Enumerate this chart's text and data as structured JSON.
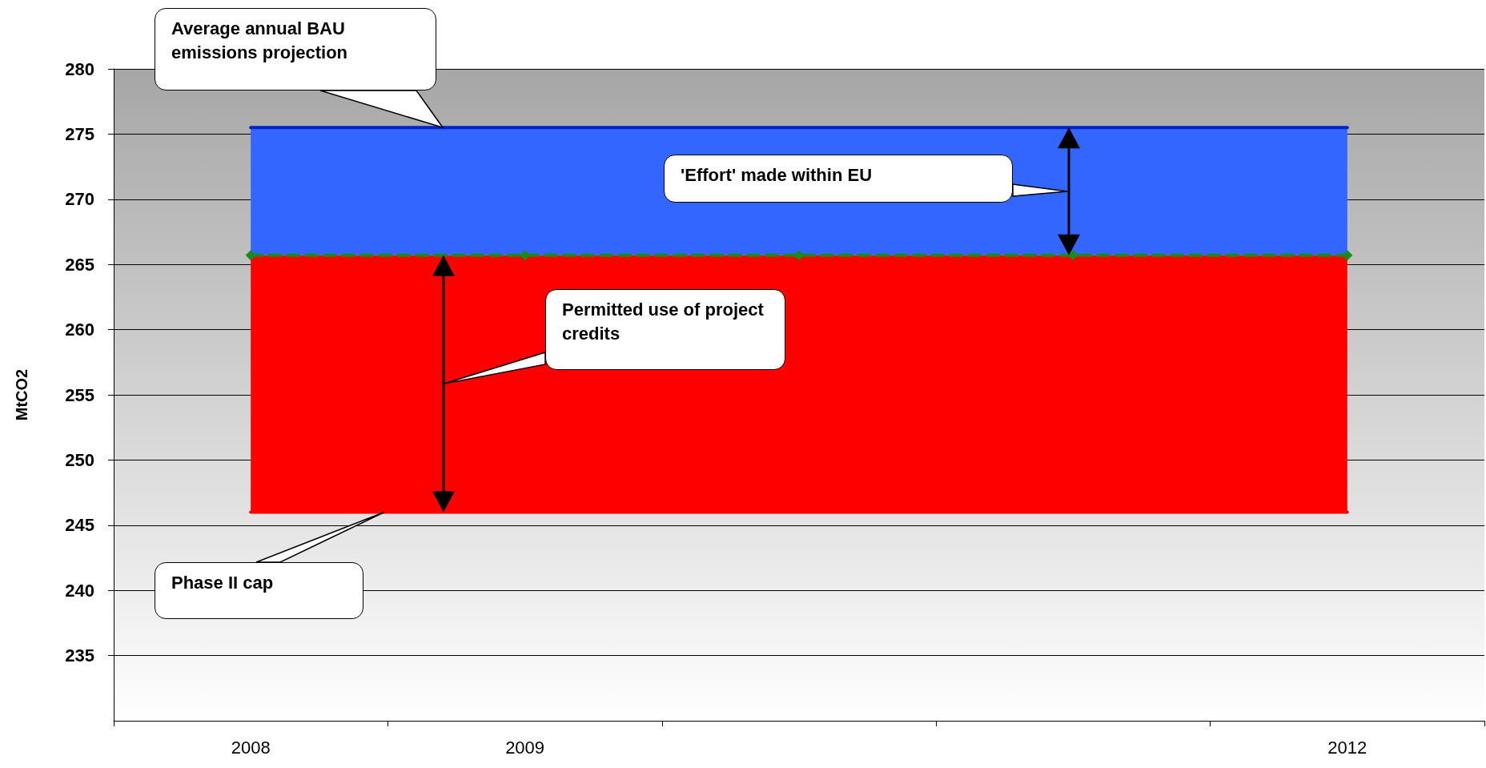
{
  "chart_data": {
    "type": "line",
    "ylabel": "MtCO2",
    "categories": [
      "2008",
      "2009",
      null,
      null,
      "2012"
    ],
    "series": [
      {
        "color": "#ff0000",
        "values": [
          246,
          246,
          246,
          246,
          246
        ]
      },
      {
        "color": "#0022cc",
        "values": [
          275.5,
          275.5,
          275.5,
          275.5,
          275.5
        ]
      },
      {
        "color": "#1a8a1a",
        "values": [
          265.7,
          265.7,
          265.7,
          265.7,
          265.7
        ],
        "marker": "diamond",
        "line_style": "dashed"
      }
    ],
    "bands": [
      {
        "axis": "y",
        "from": 246,
        "to": 265.7,
        "label": "Permitted use of project credits",
        "color": "#ff0000"
      },
      {
        "axis": "y",
        "from": 265.7,
        "to": 275.5,
        "label": "'Effort' made within EU",
        "color": "#3366ff"
      }
    ],
    "ylim": [
      230,
      280
    ],
    "yticks": [
      235,
      240,
      245,
      250,
      255,
      260,
      265,
      270,
      275,
      280
    ],
    "grid": "y",
    "annotations": [
      "Average annual BAU emissions projection",
      "Phase II cap"
    ]
  }
}
